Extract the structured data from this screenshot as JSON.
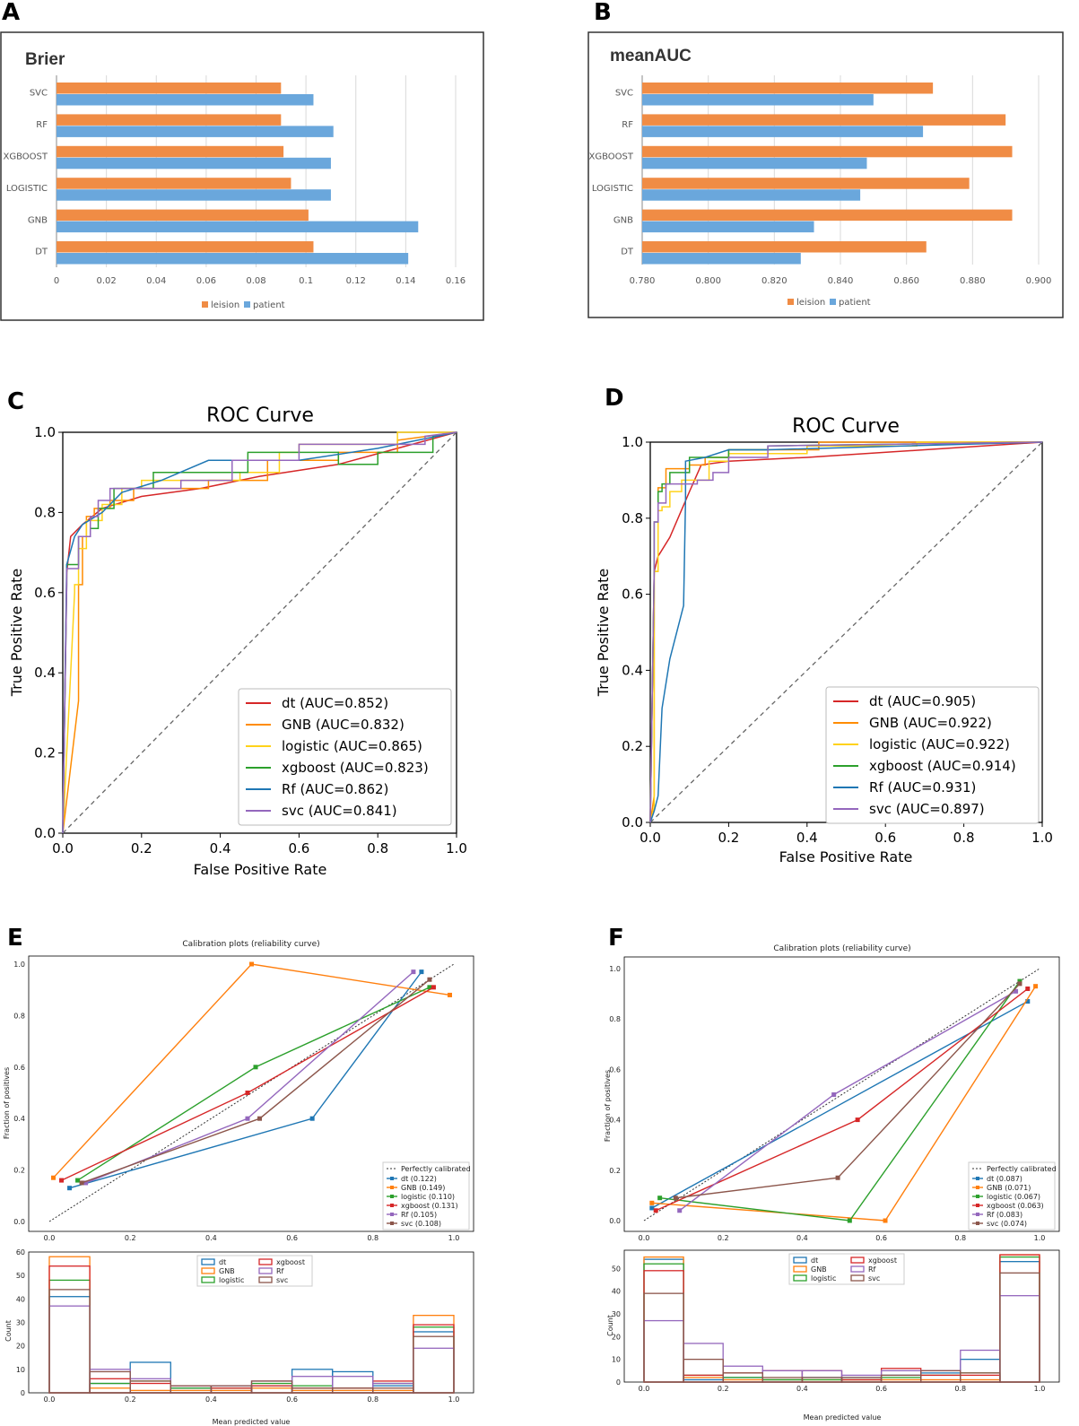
{
  "panels": {
    "A": "A",
    "B": "B",
    "C": "C",
    "D": "D",
    "E": "E",
    "F": "F"
  },
  "colors": {
    "leision": "#f08c45",
    "patient": "#6aa7dc",
    "dt": "#d62728",
    "GNB": "#ff8c00",
    "logistic": "#ffd21a",
    "xgboost": "#2ca02c",
    "Rf": "#1f77b4",
    "svc": "#9467bd",
    "cal_dt": "#1f77b4",
    "cal_GNB": "#ff7f0e",
    "cal_logistic": "#2ca02c",
    "cal_xgboost": "#d62728",
    "cal_Rf": "#9467bd",
    "cal_svc": "#8c564b"
  },
  "chart_data": [
    {
      "id": "A",
      "type": "bar",
      "title": "Brier",
      "orientation": "horizontal",
      "categories": [
        "SVC",
        "RF",
        "XGBOOST",
        "LOGISTIC",
        "GNB",
        "DT"
      ],
      "series": [
        {
          "name": "leision",
          "values": [
            0.09,
            0.09,
            0.091,
            0.094,
            0.101,
            0.103
          ]
        },
        {
          "name": "patient",
          "values": [
            0.103,
            0.111,
            0.11,
            0.11,
            0.145,
            0.141
          ]
        }
      ],
      "xlim": [
        0,
        0.16
      ],
      "xticks": [
        "0",
        "0.02",
        "0.04",
        "0.06",
        "0.08",
        "0.1",
        "0.12",
        "0.14",
        "0.16"
      ],
      "legend": [
        "leision",
        "patient"
      ]
    },
    {
      "id": "B",
      "type": "bar",
      "title": "meanAUC",
      "orientation": "horizontal",
      "categories": [
        "SVC",
        "RF",
        "XGBOOST",
        "LOGISTIC",
        "GNB",
        "DT"
      ],
      "series": [
        {
          "name": "leision",
          "values": [
            0.868,
            0.89,
            0.892,
            0.879,
            0.892,
            0.866
          ]
        },
        {
          "name": "patient",
          "values": [
            0.85,
            0.865,
            0.848,
            0.846,
            0.832,
            0.828
          ]
        }
      ],
      "xlim": [
        0.78,
        0.9
      ],
      "xticks": [
        "0.780",
        "0.800",
        "0.820",
        "0.840",
        "0.860",
        "0.880",
        "0.900"
      ],
      "legend": [
        "leision",
        "patient"
      ]
    },
    {
      "id": "C",
      "type": "line",
      "title": "ROC Curve",
      "xlabel": "False Positive Rate",
      "ylabel": "True Positive Rate",
      "xlim": [
        0,
        1
      ],
      "ylim": [
        0,
        1
      ],
      "ticks": [
        "0.0",
        "0.2",
        "0.4",
        "0.6",
        "0.8",
        "1.0"
      ],
      "series": [
        {
          "name": "dt",
          "label": "dt (AUC=0.852)",
          "x": [
            0,
            0.01,
            0.02,
            0.05,
            0.1,
            0.2,
            0.35,
            0.5,
            0.7,
            0.85,
            1
          ],
          "y": [
            0,
            0.65,
            0.74,
            0.77,
            0.81,
            0.84,
            0.86,
            0.89,
            0.92,
            0.96,
            1
          ]
        },
        {
          "name": "GNB",
          "label": "GNB (AUC=0.832)",
          "x": [
            0,
            0.04,
            0.04,
            0.05,
            0.05,
            0.06,
            0.06,
            0.08,
            0.08,
            0.12,
            0.12,
            0.18,
            0.18,
            0.37,
            0.37,
            0.52,
            0.52,
            0.7,
            0.7,
            0.85,
            0.85,
            1
          ],
          "y": [
            0,
            0.33,
            0.62,
            0.62,
            0.74,
            0.74,
            0.79,
            0.79,
            0.81,
            0.81,
            0.83,
            0.83,
            0.86,
            0.86,
            0.88,
            0.88,
            0.93,
            0.93,
            0.95,
            0.95,
            0.98,
            1
          ]
        },
        {
          "name": "logistic",
          "label": "logistic (AUC=0.865)",
          "x": [
            0,
            0.03,
            0.03,
            0.04,
            0.04,
            0.06,
            0.06,
            0.1,
            0.1,
            0.15,
            0.15,
            0.2,
            0.2,
            0.45,
            0.45,
            0.55,
            0.55,
            0.6,
            0.6,
            0.85,
            0.85,
            1
          ],
          "y": [
            0,
            0.6,
            0.62,
            0.62,
            0.71,
            0.71,
            0.78,
            0.78,
            0.82,
            0.82,
            0.86,
            0.86,
            0.88,
            0.88,
            0.9,
            0.9,
            0.95,
            0.95,
            0.97,
            0.97,
            1,
            1
          ]
        },
        {
          "name": "xgboost",
          "label": "xgboost (AUC=0.823)",
          "x": [
            0,
            0.01,
            0.01,
            0.04,
            0.04,
            0.07,
            0.07,
            0.09,
            0.09,
            0.13,
            0.13,
            0.23,
            0.23,
            0.47,
            0.47,
            0.7,
            0.7,
            0.8,
            0.8,
            0.94,
            0.94,
            1
          ],
          "y": [
            0,
            0.62,
            0.67,
            0.67,
            0.74,
            0.74,
            0.76,
            0.76,
            0.81,
            0.81,
            0.86,
            0.86,
            0.9,
            0.9,
            0.95,
            0.95,
            0.92,
            0.92,
            0.95,
            0.95,
            0.99,
            1
          ]
        },
        {
          "name": "Rf",
          "label": "Rf (AUC=0.862)",
          "x": [
            0,
            0.01,
            0.03,
            0.05,
            0.1,
            0.15,
            0.25,
            0.37,
            0.6,
            0.8,
            1
          ],
          "y": [
            0,
            0.67,
            0.74,
            0.77,
            0.8,
            0.85,
            0.88,
            0.93,
            0.93,
            0.96,
            1
          ]
        },
        {
          "name": "svc",
          "label": "svc (AUC=0.841)",
          "x": [
            0,
            0.01,
            0.01,
            0.04,
            0.04,
            0.07,
            0.07,
            0.09,
            0.09,
            0.12,
            0.12,
            0.3,
            0.3,
            0.43,
            0.43,
            0.6,
            0.6,
            0.92,
            0.92,
            1
          ],
          "y": [
            0,
            0.62,
            0.66,
            0.66,
            0.74,
            0.74,
            0.79,
            0.79,
            0.83,
            0.83,
            0.86,
            0.86,
            0.88,
            0.88,
            0.93,
            0.93,
            0.97,
            0.97,
            0.99,
            1
          ]
        }
      ]
    },
    {
      "id": "D",
      "type": "line",
      "title": "ROC Curve",
      "xlabel": "False Positive Rate",
      "ylabel": "True Positive Rate",
      "xlim": [
        0,
        1
      ],
      "ylim": [
        0,
        1
      ],
      "ticks": [
        "0.0",
        "0.2",
        "0.4",
        "0.6",
        "0.8",
        "1.0"
      ],
      "series": [
        {
          "name": "dt",
          "label": "dt (AUC=0.905)",
          "x": [
            0,
            0.01,
            0.02,
            0.05,
            0.1,
            0.13,
            0.2,
            0.4,
            0.7,
            1
          ],
          "y": [
            0,
            0.66,
            0.7,
            0.75,
            0.87,
            0.94,
            0.95,
            0.96,
            0.98,
            1
          ]
        },
        {
          "name": "GNB",
          "label": "GNB (AUC=0.922)",
          "x": [
            0,
            0.01,
            0.01,
            0.02,
            0.02,
            0.04,
            0.04,
            0.1,
            0.1,
            0.14,
            0.14,
            0.2,
            0.2,
            0.43,
            0.43,
            1
          ],
          "y": [
            0,
            0.07,
            0.66,
            0.66,
            0.88,
            0.88,
            0.93,
            0.93,
            0.94,
            0.94,
            0.96,
            0.96,
            0.98,
            0.98,
            1,
            1
          ]
        },
        {
          "name": "logistic",
          "label": "logistic (AUC=0.922)",
          "x": [
            0,
            0.01,
            0.01,
            0.02,
            0.02,
            0.03,
            0.03,
            0.05,
            0.05,
            0.08,
            0.08,
            0.15,
            0.15,
            0.2,
            0.2,
            0.4,
            0.4,
            0.68,
            0.68,
            1
          ],
          "y": [
            0,
            0.04,
            0.66,
            0.66,
            0.82,
            0.82,
            0.83,
            0.83,
            0.87,
            0.87,
            0.9,
            0.9,
            0.95,
            0.95,
            0.97,
            0.97,
            0.99,
            0.99,
            1,
            1
          ]
        },
        {
          "name": "xgboost",
          "label": "xgboost (AUC=0.914)",
          "x": [
            0,
            0.01,
            0.01,
            0.02,
            0.02,
            0.03,
            0.03,
            0.05,
            0.05,
            0.1,
            0.1,
            0.2,
            0.2,
            0.3,
            0.3,
            1
          ],
          "y": [
            0,
            0.66,
            0.79,
            0.79,
            0.87,
            0.87,
            0.89,
            0.89,
            0.92,
            0.92,
            0.96,
            0.96,
            0.98,
            0.98,
            0.99,
            1
          ]
        },
        {
          "name": "Rf",
          "label": "Rf (AUC=0.931)",
          "x": [
            0,
            0.01,
            0.02,
            0.03,
            0.05,
            0.085,
            0.09,
            0.09,
            0.14,
            0.2,
            0.3,
            1
          ],
          "y": [
            0,
            0.03,
            0.07,
            0.3,
            0.43,
            0.57,
            0.85,
            0.95,
            0.96,
            0.98,
            0.98,
            1
          ]
        },
        {
          "name": "svc",
          "label": "svc (AUC=0.897)",
          "x": [
            0,
            0.01,
            0.01,
            0.02,
            0.02,
            0.04,
            0.04,
            0.12,
            0.12,
            0.16,
            0.16,
            0.2,
            0.2,
            0.3,
            0.3,
            1
          ],
          "y": [
            0,
            0.66,
            0.79,
            0.79,
            0.84,
            0.84,
            0.89,
            0.89,
            0.9,
            0.9,
            0.92,
            0.92,
            0.96,
            0.96,
            0.99,
            1
          ]
        }
      ]
    },
    {
      "id": "E",
      "type": "line",
      "title": "Calibration plots  (reliability curve)",
      "xlabel": "Mean predicted value",
      "ylabel": "Fraction of positives",
      "xlim": [
        0,
        1
      ],
      "ylim": [
        0,
        1
      ],
      "ticks": [
        "0.0",
        "0.2",
        "0.4",
        "0.6",
        "0.8",
        "1.0"
      ],
      "reference": "Perfectly calibrated",
      "series": [
        {
          "name": "dt",
          "label": "dt (0.122)",
          "x": [
            0.05,
            0.65,
            0.92
          ],
          "y": [
            0.13,
            0.4,
            0.97
          ]
        },
        {
          "name": "GNB",
          "label": "GNB (0.149)",
          "x": [
            0.01,
            0.5,
            0.99
          ],
          "y": [
            0.17,
            1.0,
            0.88
          ]
        },
        {
          "name": "logistic",
          "label": "logistic (0.110)",
          "x": [
            0.07,
            0.51,
            0.94
          ],
          "y": [
            0.16,
            0.6,
            0.91
          ]
        },
        {
          "name": "xgboost",
          "label": "xgboost (0.131)",
          "x": [
            0.03,
            0.49,
            0.95
          ],
          "y": [
            0.16,
            0.5,
            0.91
          ]
        },
        {
          "name": "Rf",
          "label": "Rf (0.105)",
          "x": [
            0.09,
            0.49,
            0.9
          ],
          "y": [
            0.15,
            0.4,
            0.97
          ]
        },
        {
          "name": "svc",
          "label": "svc (0.108)",
          "x": [
            0.08,
            0.52,
            0.94
          ],
          "y": [
            0.15,
            0.4,
            0.94
          ]
        }
      ],
      "hist": {
        "ylabel": "Count",
        "xlabel": "Mean predicted value",
        "yticks": [
          "0",
          "10",
          "20",
          "30",
          "40",
          "50",
          "60"
        ],
        "ymax": 60,
        "bins": [
          0,
          0.1,
          0.2,
          0.3,
          0.4,
          0.5,
          0.6,
          0.7,
          0.8,
          0.9,
          1.0
        ],
        "series": [
          {
            "name": "dt",
            "counts": [
              41,
              4,
              13,
              2,
              3,
              3,
              10,
              9,
              3,
              26
            ]
          },
          {
            "name": "GNB",
            "counts": [
              58,
              2,
              1,
              1,
              1,
              2,
              1,
              1,
              1,
              33
            ]
          },
          {
            "name": "logistic",
            "counts": [
              48,
              4,
              5,
              2,
              2,
              4,
              3,
              2,
              4,
              28
            ]
          },
          {
            "name": "xgboost",
            "counts": [
              54,
              6,
              4,
              3,
              2,
              3,
              2,
              2,
              5,
              29
            ]
          },
          {
            "name": "Rf",
            "counts": [
              37,
              10,
              6,
              3,
              3,
              5,
              7,
              7,
              4,
              19
            ]
          },
          {
            "name": "svc",
            "counts": [
              44,
              9,
              5,
              3,
              3,
              5,
              2,
              2,
              2,
              24
            ]
          }
        ],
        "legend": [
          "dt",
          "GNB",
          "logistic",
          "xgboost",
          "Rf",
          "svc"
        ]
      }
    },
    {
      "id": "F",
      "type": "line",
      "title": "Calibration plots  (reliability curve)",
      "xlabel": "Mean predicted value",
      "ylabel": "Fraction of positives",
      "xlim": [
        0,
        1
      ],
      "ylim": [
        0,
        1
      ],
      "ticks": [
        "0.0",
        "0.2",
        "0.4",
        "0.6",
        "0.8",
        "1.0"
      ],
      "reference": "Perfectly calibrated",
      "series": [
        {
          "name": "dt",
          "label": "dt (0.087)",
          "x": [
            0.02,
            0.97
          ],
          "y": [
            0.05,
            0.87
          ]
        },
        {
          "name": "GNB",
          "label": "GNB (0.071)",
          "x": [
            0.02,
            0.61,
            0.99
          ],
          "y": [
            0.07,
            0.0,
            0.93
          ]
        },
        {
          "name": "logistic",
          "label": "logistic (0.067)",
          "x": [
            0.04,
            0.52,
            0.95
          ],
          "y": [
            0.09,
            0.0,
            0.95
          ]
        },
        {
          "name": "xgboost",
          "label": "xgboost (0.063)",
          "x": [
            0.03,
            0.54,
            0.97
          ],
          "y": [
            0.04,
            0.4,
            0.92
          ]
        },
        {
          "name": "Rf",
          "label": "Rf (0.083)",
          "x": [
            0.09,
            0.48,
            0.94
          ],
          "y": [
            0.04,
            0.5,
            0.91
          ]
        },
        {
          "name": "svc",
          "label": "svc (0.074)",
          "x": [
            0.08,
            0.49,
            0.95
          ],
          "y": [
            0.09,
            0.17,
            0.94
          ]
        }
      ],
      "hist": {
        "ylabel": "Count",
        "xlabel": "Mean predicted value",
        "yticks": [
          "0",
          "10",
          "20",
          "30",
          "40",
          "50"
        ],
        "ymax": 58,
        "bins": [
          0,
          0.1,
          0.2,
          0.3,
          0.4,
          0.5,
          0.6,
          0.7,
          0.8,
          0.9,
          1.0
        ],
        "series": [
          {
            "name": "dt",
            "counts": [
              54,
              1,
              2,
              1,
              2,
              2,
              3,
              4,
              10,
              53
            ]
          },
          {
            "name": "GNB",
            "counts": [
              55,
              2,
              1,
              1,
              1,
              1,
              1,
              1,
              1,
              56
            ]
          },
          {
            "name": "logistic",
            "counts": [
              52,
              3,
              2,
              1,
              1,
              1,
              2,
              3,
              4,
              55
            ]
          },
          {
            "name": "xgboost",
            "counts": [
              49,
              3,
              4,
              5,
              5,
              1,
              6,
              3,
              3,
              56
            ]
          },
          {
            "name": "Rf",
            "counts": [
              27,
              17,
              7,
              5,
              5,
              3,
              5,
              5,
              14,
              38
            ]
          },
          {
            "name": "svc",
            "counts": [
              39,
              10,
              4,
              2,
              2,
              2,
              3,
              5,
              4,
              48
            ]
          }
        ],
        "legend": [
          "dt",
          "GNB",
          "logistic",
          "xgboost",
          "Rf",
          "svc"
        ]
      }
    }
  ]
}
